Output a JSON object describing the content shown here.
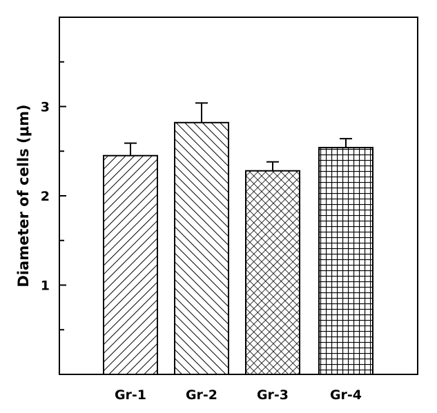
{
  "chart_data": {
    "type": "bar",
    "categories": [
      "Gr-1",
      "Gr-2",
      "Gr-3",
      "Gr-4"
    ],
    "values": [
      2.45,
      2.82,
      2.28,
      2.54
    ],
    "errors": [
      0.14,
      0.22,
      0.1,
      0.1
    ],
    "patterns": [
      "diagonal-forward",
      "diagonal-back",
      "crosshatch-diagonal",
      "grid"
    ],
    "title": "",
    "xlabel": "",
    "ylabel": "Diameter of cells (μm)",
    "ylim": [
      0,
      4
    ],
    "yticks": [
      1,
      2,
      3
    ],
    "ytick_labels": [
      "1",
      "2",
      "3"
    ],
    "minor_yticks": [
      0.5,
      1.5,
      2.5,
      3.5
    ],
    "grid": false,
    "colors": {
      "stroke": "#000000",
      "fill": "#ffffff"
    }
  }
}
